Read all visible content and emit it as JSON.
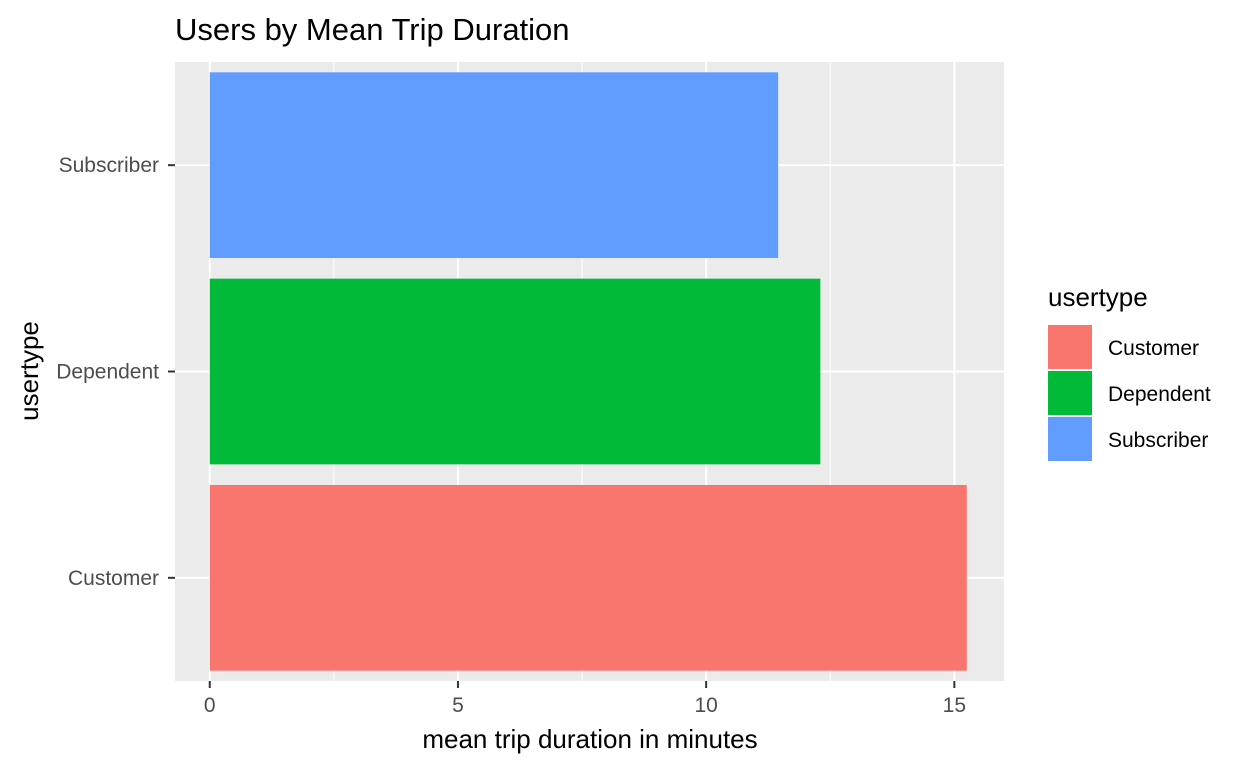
{
  "chart_data": {
    "type": "bar",
    "orientation": "horizontal",
    "title": "Users by Mean Trip Duration",
    "xlabel": "mean trip duration in minutes",
    "ylabel": "usertype",
    "categories": [
      "Customer",
      "Dependent",
      "Subscriber"
    ],
    "values": [
      15.25,
      12.3,
      11.45
    ],
    "colors": [
      "#F8766D",
      "#00BA38",
      "#619CFF"
    ],
    "xlim": [
      -0.7,
      16.0
    ],
    "xticks": [
      0,
      5,
      10,
      15
    ],
    "xtick_labels": [
      "0",
      "5",
      "10",
      "15"
    ],
    "grid": true,
    "panel_background": "#EBEBEB",
    "legend": {
      "title": "usertype",
      "position": "right",
      "items": [
        {
          "label": "Customer",
          "color": "#F8766D"
        },
        {
          "label": "Dependent",
          "color": "#00BA38"
        },
        {
          "label": "Subscriber",
          "color": "#619CFF"
        }
      ]
    }
  }
}
